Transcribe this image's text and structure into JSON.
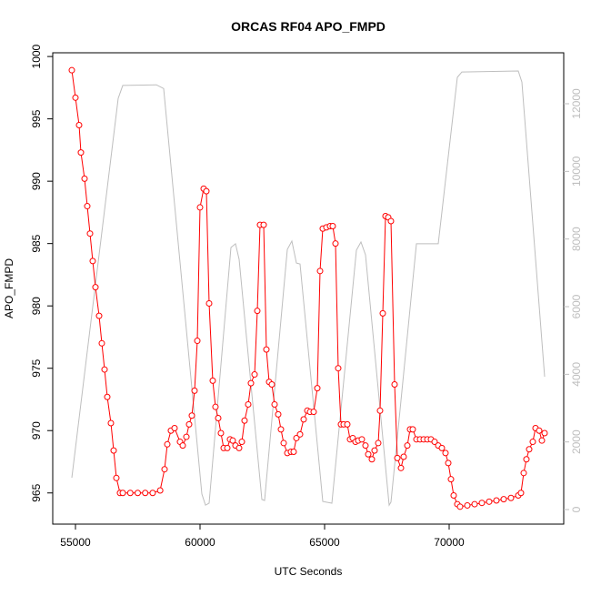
{
  "chart_data": {
    "type": "line",
    "title": "ORCAS RF04 APO_FMPD",
    "x_label": "UTC Seconds",
    "y_label": "APO_FMPD",
    "xlim": [
      54088,
      74599
    ],
    "xticks": [
      55000,
      60000,
      65000,
      70000
    ],
    "ylim": [
      962.5,
      1000.3
    ],
    "yticks": [
      965,
      970,
      975,
      980,
      985,
      990,
      995,
      1000
    ],
    "y2lim": [
      -430,
      13507
    ],
    "y2ticks": [
      0,
      2000,
      4000,
      6000,
      8000,
      10000,
      12000
    ],
    "series": [
      {
        "color": "#ff0000",
        "markers": true,
        "x": [
          54854,
          55000,
          55146,
          55219,
          55365,
          55474,
          55584,
          55693,
          55803,
          55949,
          56058,
          56168,
          56277,
          56423,
          56533,
          56642,
          56788,
          56900,
          57200,
          57500,
          57800,
          58100,
          58400,
          58577,
          58686,
          58832,
          58978,
          59197,
          59307,
          59453,
          59562,
          59672,
          59781,
          59891,
          60000,
          60146,
          60255,
          60365,
          60511,
          60620,
          60730,
          60839,
          60949,
          61095,
          61204,
          61314,
          61423,
          61569,
          61679,
          61788,
          61934,
          62044,
          62190,
          62299,
          62409,
          62555,
          62664,
          62774,
          62883,
          62993,
          63139,
          63248,
          63358,
          63504,
          63650,
          63759,
          63869,
          64015,
          64161,
          64307,
          64416,
          64562,
          64708,
          64818,
          64927,
          65073,
          65219,
          65328,
          65438,
          65547,
          65657,
          65766,
          65912,
          66022,
          66131,
          66241,
          66350,
          66496,
          66642,
          66752,
          66898,
          67007,
          67153,
          67226,
          67336,
          67445,
          67555,
          67664,
          67810,
          67920,
          68066,
          68175,
          68321,
          68431,
          68540,
          68686,
          68832,
          68978,
          69124,
          69270,
          69416,
          69562,
          69708,
          69854,
          69964,
          70073,
          70182,
          70328,
          70438,
          70730,
          71022,
          71314,
          71606,
          71898,
          72190,
          72482,
          72774,
          72883,
          72993,
          73102,
          73212,
          73358,
          73467,
          73613,
          73723,
          73832
        ],
        "values": [
          998.9,
          996.7,
          994.5,
          992.3,
          990.2,
          988.0,
          985.8,
          983.6,
          981.5,
          979.2,
          977.0,
          974.9,
          972.7,
          970.6,
          968.4,
          966.2,
          965.0,
          965.0,
          965.0,
          965.0,
          965.0,
          965.0,
          965.2,
          966.9,
          968.9,
          970.0,
          970.2,
          969.1,
          968.8,
          969.5,
          970.5,
          971.2,
          973.2,
          977.2,
          987.9,
          989.4,
          989.2,
          980.2,
          974.0,
          971.9,
          971.0,
          969.8,
          968.6,
          968.6,
          969.3,
          969.2,
          968.8,
          968.6,
          969.1,
          970.8,
          972.1,
          973.8,
          974.5,
          979.6,
          986.5,
          986.5,
          976.5,
          973.9,
          973.7,
          972.1,
          971.3,
          970.1,
          969.0,
          968.2,
          968.3,
          968.3,
          969.4,
          969.7,
          970.9,
          971.6,
          971.5,
          971.5,
          973.4,
          982.8,
          986.2,
          986.3,
          986.4,
          986.4,
          985.0,
          975.0,
          970.5,
          970.5,
          970.5,
          969.3,
          969.4,
          969.1,
          969.2,
          969.3,
          968.8,
          968.1,
          967.7,
          968.4,
          969.0,
          971.6,
          979.4,
          987.2,
          987.1,
          986.8,
          973.7,
          967.8,
          967.0,
          967.9,
          968.8,
          970.1,
          970.1,
          969.3,
          969.3,
          969.3,
          969.3,
          969.3,
          969.1,
          968.8,
          968.6,
          968.2,
          967.4,
          966.1,
          964.8,
          964.1,
          963.9,
          964.0,
          964.1,
          964.2,
          964.3,
          964.4,
          964.5,
          964.6,
          964.8,
          965.0,
          966.6,
          967.7,
          968.5,
          969.1,
          970.2,
          970.0,
          969.2,
          969.8
        ]
      },
      {
        "color": "#bebebe",
        "axis": "y2",
        "markers": false,
        "x": [
          54854,
          56715,
          56898,
          58248,
          58540,
          60073,
          60219,
          60365,
          61241,
          61423,
          61569,
          62482,
          62591,
          63504,
          63686,
          63869,
          64015,
          64927,
          65292,
          66277,
          66460,
          66642,
          67591,
          67664,
          68686,
          69562,
          70328,
          70511,
          72774,
          72920,
          73832
        ],
        "values": [
          940,
          12160,
          12540,
          12560,
          12450,
          460,
          130,
          190,
          7750,
          7860,
          7400,
          300,
          270,
          7690,
          7940,
          7290,
          7260,
          240,
          190,
          7670,
          7910,
          7530,
          130,
          220,
          7860,
          7860,
          12780,
          12940,
          12970,
          12640,
          3930
        ]
      }
    ]
  }
}
